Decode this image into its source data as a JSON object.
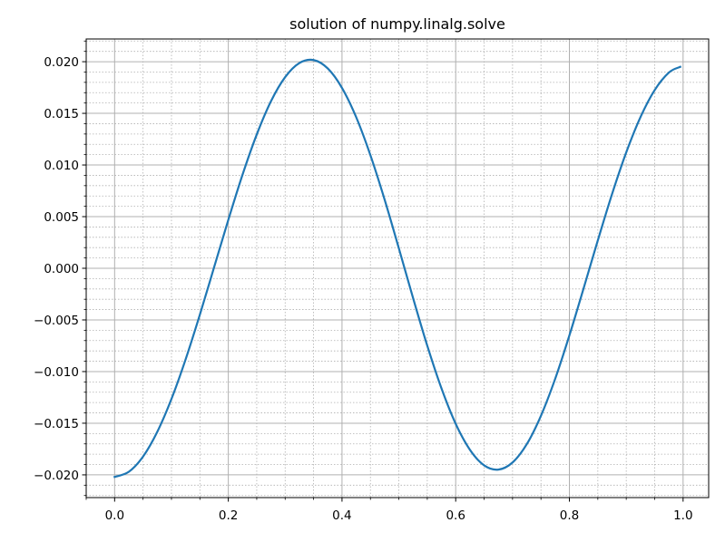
{
  "chart_data": {
    "type": "line",
    "title": "solution of numpy.linalg.solve",
    "xlabel": "",
    "ylabel": "",
    "xlim": [
      -0.05,
      1.045
    ],
    "ylim": [
      -0.0222,
      0.0222
    ],
    "x_ticks": [
      0.0,
      0.2,
      0.4,
      0.6,
      0.8,
      1.0
    ],
    "x_tick_labels": [
      "0.0",
      "0.2",
      "0.4",
      "0.6",
      "0.8",
      "1.0"
    ],
    "y_ticks": [
      0.02,
      0.015,
      0.01,
      0.005,
      0.0,
      -0.005,
      -0.01,
      -0.015,
      -0.02
    ],
    "y_tick_labels": [
      "0.020",
      "0.015",
      "0.010",
      "0.005",
      "0.000",
      "−0.005",
      "−0.010",
      "−0.015",
      "−0.020"
    ],
    "grid": {
      "major": true,
      "minor": true
    },
    "series": [
      {
        "color": "#1f77b4",
        "x": [
          0.0,
          0.025,
          0.05,
          0.075,
          0.1,
          0.125,
          0.15,
          0.175,
          0.2,
          0.225,
          0.25,
          0.275,
          0.3,
          0.325,
          0.35,
          0.375,
          0.4,
          0.425,
          0.45,
          0.475,
          0.5,
          0.525,
          0.55,
          0.575,
          0.6,
          0.625,
          0.65,
          0.675,
          0.7,
          0.725,
          0.75,
          0.775,
          0.8,
          0.825,
          0.85,
          0.875,
          0.9,
          0.925,
          0.95,
          0.975,
          0.995
        ],
        "values": [
          -0.0202,
          -0.0197,
          -0.01823,
          -0.01584,
          -0.01265,
          -0.0088,
          -0.00448,
          0.0001,
          0.00469,
          0.00906,
          0.01295,
          0.01617,
          0.01851,
          0.01987,
          0.02016,
          0.01934,
          0.01746,
          0.01462,
          0.01094,
          0.00664,
          0.00193,
          -0.00288,
          -0.0075,
          -0.01163,
          -0.01506,
          -0.01757,
          -0.01908,
          -0.01949,
          -0.0188,
          -0.01703,
          -0.01427,
          -0.0107,
          -0.0065,
          -0.00195,
          0.0027,
          0.00718,
          0.01122,
          0.01463,
          0.01725,
          0.01895,
          0.0195
        ]
      }
    ]
  }
}
